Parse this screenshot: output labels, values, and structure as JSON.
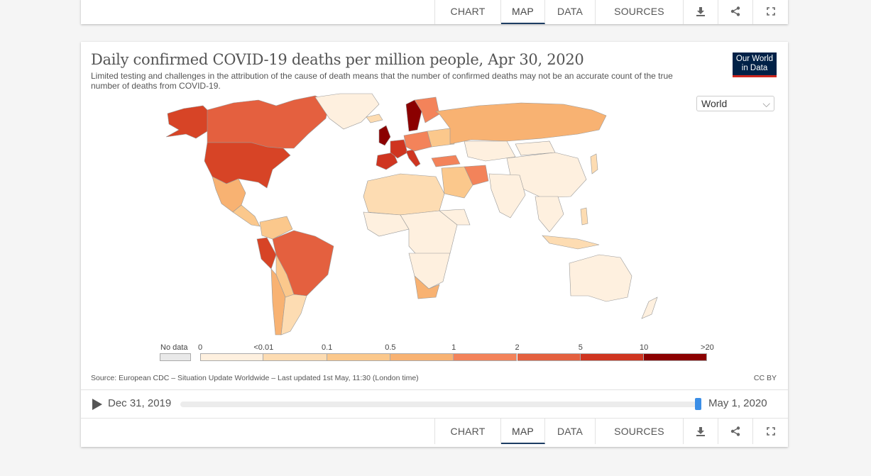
{
  "tabs": {
    "chart": "CHART",
    "map": "MAP",
    "data": "DATA",
    "sources": "SOURCES"
  },
  "icons": [
    "download-icon",
    "share-icon",
    "fullscreen-icon"
  ],
  "header": {
    "title": "Daily confirmed COVID-19 deaths per million people, Apr 30, 2020",
    "subtitle": "Limited testing and challenges in the attribution of the cause of death means that the number of confirmed deaths may not be an accurate count of the true number of deaths from COVID-19.",
    "logo": "Our World in Data"
  },
  "region_select": {
    "value": "World"
  },
  "legend": {
    "nodata_label": "No data",
    "ticks": [
      "0",
      "<0.01",
      "0.1",
      "0.5",
      "1",
      "2",
      "5",
      "10",
      ">20"
    ],
    "bin_colors": [
      "#fef0df",
      "#fddcb2",
      "#fbc88c",
      "#f8b272",
      "#f3835a",
      "#e4603f",
      "#cf3520",
      "#8b0000"
    ]
  },
  "map_colors": {
    "no_data": "#e9e9e9",
    "border": "#999999"
  },
  "footer": {
    "source": "Source: European CDC – Situation Update Worldwide – Last updated 1st May, 11:30 (London time)",
    "license": "CC BY"
  },
  "timeline": {
    "start": "Dec 31, 2019",
    "end": "May 1, 2020",
    "position": 1.0
  }
}
